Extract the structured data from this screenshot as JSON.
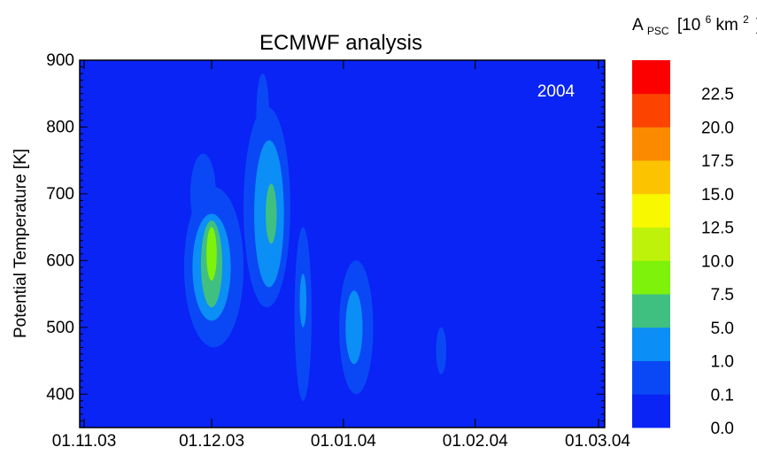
{
  "chart_data": {
    "type": "heatmap",
    "title": "ECMWF analysis",
    "xlabel": "",
    "ylabel": "Potential Temperature [K]",
    "annotation": "2004",
    "x_tick_labels": [
      "01.11.03",
      "01.12.03",
      "01.01.04",
      "01.02.04",
      "01.03.04"
    ],
    "x_tick_days": [
      0,
      30,
      61,
      92,
      121
    ],
    "xlim_days": [
      0,
      121
    ],
    "y_ticks": [
      400,
      500,
      600,
      700,
      800,
      900
    ],
    "ylim": [
      350,
      900
    ],
    "grid": false,
    "colorbar": {
      "label_main": "A",
      "label_sub": "PSC",
      "label_open": "[10",
      "label_exp": "6",
      "label_unit": " km",
      "label_unit_exp": "2",
      "label_close": "]",
      "levels": [
        0.0,
        0.1,
        1.0,
        5.0,
        7.5,
        10.0,
        12.5,
        15.0,
        17.5,
        20.0,
        22.5,
        25.0
      ],
      "tick_labels": [
        "0.0",
        "0.1",
        "1.0",
        "5.0",
        "7.5",
        "10.0",
        "12.5",
        "15.0",
        "17.5",
        "20.0",
        "22.5"
      ],
      "colors": [
        "#0a24f5",
        "#0a48f5",
        "#0b8ef5",
        "#40c080",
        "#7ef20a",
        "#bef20a",
        "#f8f800",
        "#fcc400",
        "#fc8a00",
        "#fc4400",
        "#fc0000"
      ]
    },
    "regions": [
      {
        "level": 1,
        "day_center": 30.5,
        "theta_center": 590,
        "day_halfwidth": 7.0,
        "theta_halfwidth": 120
      },
      {
        "level": 1,
        "day_center": 28.0,
        "theta_center": 700,
        "day_halfwidth": 3.0,
        "theta_halfwidth": 60
      },
      {
        "level": 1,
        "day_center": 43.0,
        "theta_center": 680,
        "day_halfwidth": 5.5,
        "theta_halfwidth": 150
      },
      {
        "level": 1,
        "day_center": 42.0,
        "theta_center": 820,
        "day_halfwidth": 1.5,
        "theta_halfwidth": 60
      },
      {
        "level": 1,
        "day_center": 51.5,
        "theta_center": 520,
        "day_halfwidth": 2.0,
        "theta_halfwidth": 130
      },
      {
        "level": 1,
        "day_center": 64.0,
        "theta_center": 500,
        "day_halfwidth": 4.0,
        "theta_halfwidth": 100
      },
      {
        "level": 1,
        "day_center": 84.0,
        "theta_center": 465,
        "day_halfwidth": 1.2,
        "theta_halfwidth": 35
      },
      {
        "level": 2,
        "day_center": 30.0,
        "theta_center": 590,
        "day_halfwidth": 4.5,
        "theta_halfwidth": 80
      },
      {
        "level": 2,
        "day_center": 43.5,
        "theta_center": 670,
        "day_halfwidth": 3.5,
        "theta_halfwidth": 110
      },
      {
        "level": 2,
        "day_center": 51.5,
        "theta_center": 540,
        "day_halfwidth": 0.8,
        "theta_halfwidth": 40
      },
      {
        "level": 2,
        "day_center": 63.5,
        "theta_center": 500,
        "day_halfwidth": 2.0,
        "theta_halfwidth": 55
      },
      {
        "level": 3,
        "day_center": 30.0,
        "theta_center": 595,
        "day_halfwidth": 2.5,
        "theta_halfwidth": 65
      },
      {
        "level": 3,
        "day_center": 44.0,
        "theta_center": 670,
        "day_halfwidth": 1.3,
        "theta_halfwidth": 45
      },
      {
        "level": 4,
        "day_center": 30.0,
        "theta_center": 610,
        "day_halfwidth": 1.2,
        "theta_halfwidth": 40
      }
    ]
  }
}
